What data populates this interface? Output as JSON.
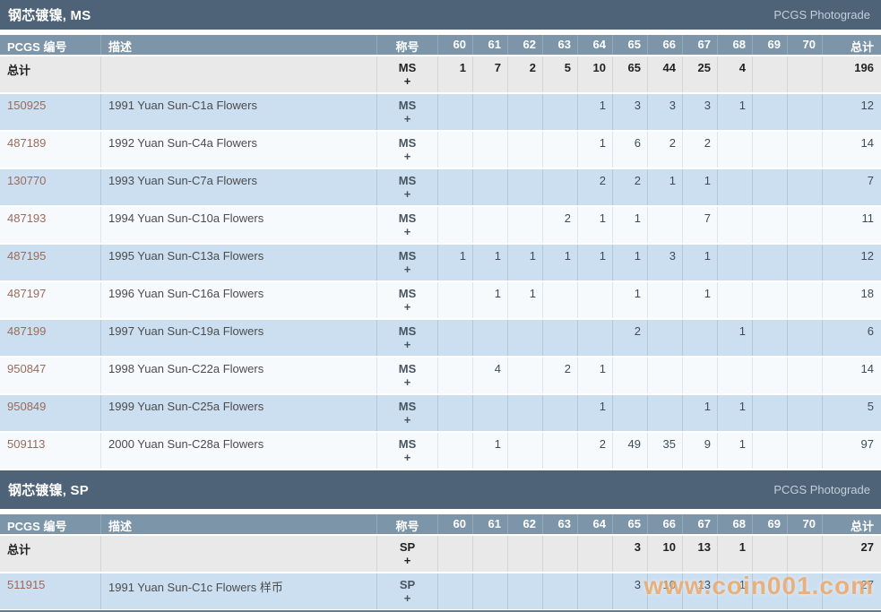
{
  "labels": {
    "pcgs_no": "PCGS 编号",
    "desc": "描述",
    "grade": "称号",
    "total_row": "总计",
    "total_col": "总计",
    "photograde": "PCGS Photograde"
  },
  "grade_columns": [
    "60",
    "61",
    "62",
    "63",
    "64",
    "65",
    "66",
    "67",
    "68",
    "69",
    "70"
  ],
  "watermark": "www.coin001.com",
  "colors": {
    "section_bar": "#4e6378",
    "column_header": "#7d95a9",
    "row_blue": "#cbdff0",
    "row_white": "#f6fafd",
    "total_row_bg": "#e9e9e9",
    "link": "#9c6a5a",
    "watermark": "#f0a868"
  },
  "sections": [
    {
      "title": "钢芯镀镍, MS",
      "grade_label": [
        "MS",
        "+"
      ],
      "total_counts": [
        "1",
        "7",
        "2",
        "5",
        "10",
        "65",
        "44",
        "25",
        "4",
        "",
        ""
      ],
      "total_sum": "196",
      "rows": [
        {
          "pcgs": "150925",
          "desc": "1991 Yuan Sun-C1a Flowers",
          "counts": [
            "",
            "",
            "",
            "",
            "1",
            "3",
            "3",
            "3",
            "1",
            "",
            ""
          ],
          "sum": "12"
        },
        {
          "pcgs": "487189",
          "desc": "1992 Yuan Sun-C4a Flowers",
          "counts": [
            "",
            "",
            "",
            "",
            "1",
            "6",
            "2",
            "2",
            "",
            "",
            ""
          ],
          "sum": "14"
        },
        {
          "pcgs": "130770",
          "desc": "1993 Yuan Sun-C7a Flowers",
          "counts": [
            "",
            "",
            "",
            "",
            "2",
            "2",
            "1",
            "1",
            "",
            "",
            ""
          ],
          "sum": "7"
        },
        {
          "pcgs": "487193",
          "desc": "1994 Yuan Sun-C10a Flowers",
          "counts": [
            "",
            "",
            "",
            "2",
            "1",
            "1",
            "",
            "7",
            "",
            "",
            ""
          ],
          "sum": "11"
        },
        {
          "pcgs": "487195",
          "desc": "1995 Yuan Sun-C13a Flowers",
          "counts": [
            "1",
            "1",
            "1",
            "1",
            "1",
            "1",
            "3",
            "1",
            "",
            "",
            ""
          ],
          "sum": "12"
        },
        {
          "pcgs": "487197",
          "desc": "1996 Yuan Sun-C16a Flowers",
          "counts": [
            "",
            "1",
            "1",
            "",
            "",
            "1",
            "",
            "1",
            "",
            "",
            ""
          ],
          "sum": "18"
        },
        {
          "pcgs": "487199",
          "desc": "1997 Yuan Sun-C19a Flowers",
          "counts": [
            "",
            "",
            "",
            "",
            "",
            "2",
            "",
            "",
            "1",
            "",
            ""
          ],
          "sum": "6"
        },
        {
          "pcgs": "950847",
          "desc": "1998 Yuan Sun-C22a Flowers",
          "counts": [
            "",
            "4",
            "",
            "2",
            "1",
            "",
            "",
            "",
            "",
            "",
            ""
          ],
          "sum": "14"
        },
        {
          "pcgs": "950849",
          "desc": "1999 Yuan Sun-C25a Flowers",
          "counts": [
            "",
            "",
            "",
            "",
            "1",
            "",
            "",
            "1",
            "1",
            "",
            ""
          ],
          "sum": "5"
        },
        {
          "pcgs": "509113",
          "desc": "2000 Yuan Sun-C28a Flowers",
          "counts": [
            "",
            "1",
            "",
            "",
            "2",
            "49",
            "35",
            "9",
            "1",
            "",
            ""
          ],
          "sum": "97"
        }
      ]
    },
    {
      "title": "钢芯镀镍, SP",
      "grade_label": [
        "SP",
        "+"
      ],
      "total_counts": [
        "",
        "",
        "",
        "",
        "",
        "3",
        "10",
        "13",
        "1",
        "",
        ""
      ],
      "total_sum": "27",
      "rows": [
        {
          "pcgs": "511915",
          "desc": "1991 Yuan Sun-C1c Flowers 样币",
          "counts": [
            "",
            "",
            "",
            "",
            "",
            "3",
            "10",
            "13",
            "1",
            "",
            ""
          ],
          "sum": "27"
        }
      ]
    }
  ]
}
